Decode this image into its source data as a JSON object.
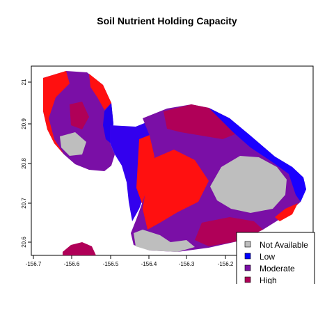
{
  "title": "Soil Nutrient Holding Capacity",
  "chart_data": {
    "type": "map",
    "title": "Soil Nutrient Holding Capacity",
    "xlabel": "",
    "ylabel": "",
    "x_ticks": [
      "-156.7",
      "-156.6",
      "-156.5",
      "-156.4",
      "-156.3",
      "-156.2"
    ],
    "y_ticks": [
      "20.6",
      "20.7",
      "20.8",
      "20.9",
      "21"
    ],
    "xlim": [
      -156.72,
      -156.03
    ],
    "ylim": [
      20.575,
      21.02
    ],
    "legend_position": "bottom-right",
    "legend": [
      {
        "label": "Not Available",
        "color": "#bebebe"
      },
      {
        "label": "Low",
        "color": "#0000ff"
      },
      {
        "label": "Moderate",
        "color": "#7a0fa6"
      },
      {
        "label": "High",
        "color": "#b00058"
      }
    ],
    "colors": {
      "not_available": "#bebebe",
      "low": "#0000ff",
      "moderate": "#7a0fa6",
      "high": "#b00058",
      "very_high": "#ff0000"
    }
  }
}
